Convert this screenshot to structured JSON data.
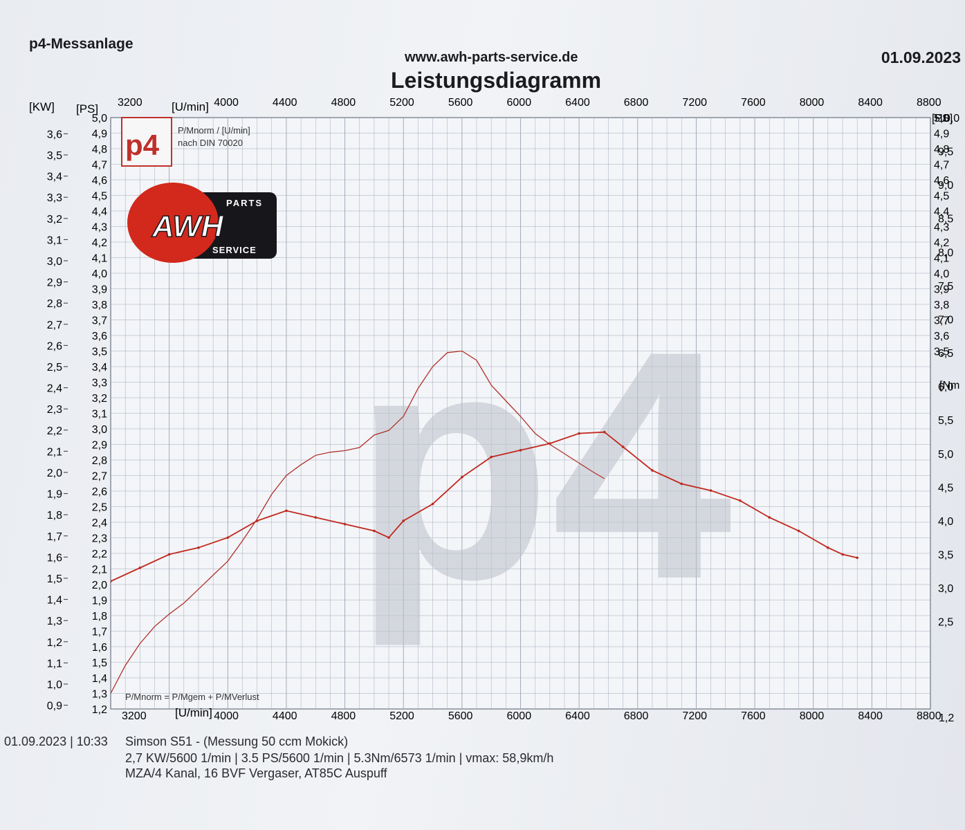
{
  "header": {
    "brand": "p4-Messanlage",
    "url": "www.awh-parts-service.de",
    "title": "Leistungsdiagramm",
    "date": "01.09.2023"
  },
  "stamp": {
    "logo": "p4",
    "line1": "P/Mnorm / [U/min]",
    "line2": "nach DIN 70020"
  },
  "awh_logo": {
    "top": "PARTS",
    "main": "AWH",
    "bottom": "SERVICE"
  },
  "watermark": "p4",
  "formula": "P/Mnorm = P/Mgem + P/MVerlust",
  "footer": {
    "timestamp": "01.09.2023 | 10:33",
    "vehicle": "Simson S51 - (Messung 50 ccm Mokick)",
    "results": "2,7 KW/5600  1/min   |   3.5 PS/5600  1/min   |   5.3Nm/6573  1/min   |   vmax: 58,9km/h",
    "setup": "MZA/4 Kanal, 16 BVF Vergaser, AT85C Auspuff"
  },
  "colors": {
    "grid": "#9aa4b3",
    "power_curve": "#b0302a",
    "torque_curve": "#c0281e",
    "watermark": "#bcc1c9",
    "logo_red": "#d2291c"
  },
  "chart_data": {
    "type": "line",
    "x_unit_label": "[U/min]",
    "x_ticks": [
      3200,
      4000,
      4400,
      4800,
      5200,
      5600,
      6000,
      6400,
      6800,
      7200,
      7600,
      8000,
      8400,
      8800
    ],
    "xlim": [
      3200,
      8800
    ],
    "left_axes": {
      "kw": {
        "label": "[KW]",
        "ticks": [
          "0,9",
          "1,0",
          "1,1",
          "1,2",
          "1,3",
          "1,4",
          "1,5",
          "1,6",
          "1,7",
          "1,8",
          "1,9",
          "2,0",
          "2,1",
          "2,2",
          "2,3",
          "2,4",
          "2,5",
          "2,6",
          "2,7",
          "2,8",
          "2,9",
          "3,0",
          "3,1",
          "3,2",
          "3,3",
          "3,4",
          "3,5",
          "3,6"
        ]
      },
      "ps": {
        "label": "[PS]",
        "ticks": [
          "1,2",
          "1,3",
          "1,4",
          "1,5",
          "1,6",
          "1,7",
          "1,8",
          "1,9",
          "2,0",
          "2,1",
          "2,2",
          "2,3",
          "2,4",
          "2,5",
          "2,6",
          "2,7",
          "2,8",
          "2,9",
          "3,0",
          "3,1",
          "3,2",
          "3,3",
          "3,4",
          "3,5",
          "3,6",
          "3,7",
          "3,8",
          "3,9",
          "4,0",
          "4,1",
          "4,2",
          "4,3",
          "4,4",
          "4,5",
          "4,6",
          "4,7",
          "4,8",
          "4,9",
          "5,0"
        ]
      },
      "ylim": [
        1.2,
        5.0
      ]
    },
    "right_axes": {
      "ps": {
        "label": "[PS]",
        "ticks": [
          "5,0",
          "4,9",
          "4,8",
          "4,7",
          "4,6",
          "4,5",
          "4,4",
          "4,3",
          "4,2",
          "4,1",
          "4,0",
          "3,9",
          "3,8",
          "3,7",
          "3,6",
          "3,5"
        ]
      },
      "nm": {
        "label": "[Nm",
        "ticks": [
          "10,0",
          "9,5",
          "9,0",
          "8,5",
          "8,0",
          "7,5",
          "7,0",
          "6,5",
          "6,0",
          "5,5",
          "5,0",
          "4,5",
          "4,0",
          "3,5",
          "3,0",
          "2,5"
        ]
      },
      "bottom_value": "1,2",
      "ylim": [
        1.2,
        10.0
      ]
    },
    "series": [
      {
        "axis": "PS",
        "x": [
          3200,
          3300,
          3400,
          3500,
          3600,
          3700,
          3800,
          3900,
          4000,
          4100,
          4200,
          4300,
          4400,
          4500,
          4600,
          4700,
          4800,
          4900,
          5000,
          5100,
          5200,
          5300,
          5400,
          5500,
          5600,
          5700,
          5800,
          5900,
          6000,
          6100,
          6200,
          6300,
          6400,
          6500,
          6573
        ],
        "y": [
          1.3,
          1.48,
          1.62,
          1.73,
          1.81,
          1.88,
          1.97,
          2.06,
          2.15,
          2.28,
          2.42,
          2.58,
          2.7,
          2.77,
          2.83,
          2.85,
          2.86,
          2.88,
          2.96,
          2.99,
          3.08,
          3.26,
          3.4,
          3.49,
          3.5,
          3.44,
          3.28,
          3.18,
          3.08,
          2.97,
          2.9,
          2.84,
          2.78,
          2.72,
          2.68
        ]
      },
      {
        "axis": "Nm",
        "x": [
          3200,
          3400,
          3600,
          3800,
          4000,
          4200,
          4400,
          4600,
          4800,
          5000,
          5100,
          5200,
          5400,
          5600,
          5800,
          6000,
          6200,
          6400,
          6573,
          6700,
          6900,
          7100,
          7300,
          7500,
          7700,
          7900,
          8100,
          8200,
          8300
        ],
        "y": [
          3.1,
          3.3,
          3.5,
          3.6,
          3.75,
          4.0,
          4.15,
          4.05,
          3.95,
          3.85,
          3.75,
          4.0,
          4.25,
          4.65,
          4.95,
          5.05,
          5.15,
          5.3,
          5.32,
          5.1,
          4.75,
          4.55,
          4.45,
          4.3,
          4.05,
          3.85,
          3.6,
          3.5,
          3.45
        ]
      }
    ],
    "grid": true
  }
}
